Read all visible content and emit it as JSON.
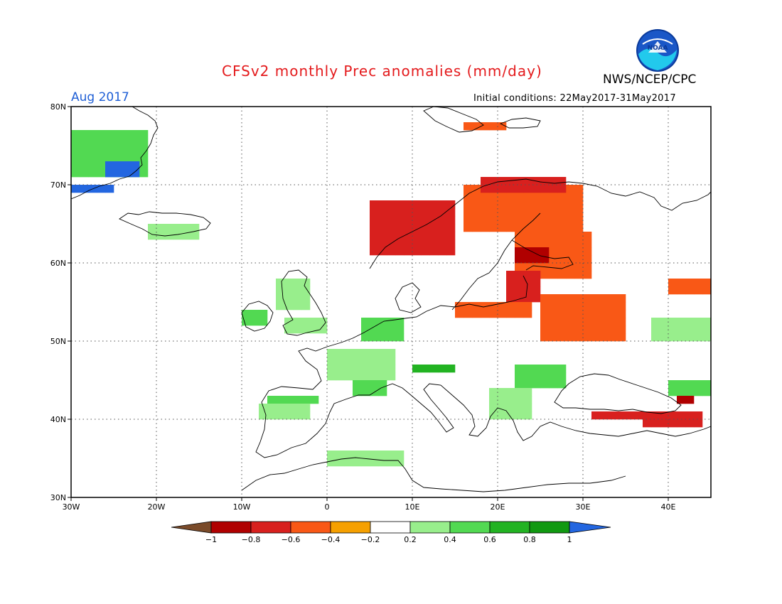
{
  "title": "CFSv2 monthly Prec anomalies (mm/day)",
  "organization": "NWS/NCEP/CPC",
  "logo": {
    "icon": "noaa-logo-icon",
    "text": "NOAA"
  },
  "forecast_month": "Aug 2017",
  "initial_conditions": "Initial conditions: 22May2017-31May2017",
  "map": {
    "lon_range": [
      -30,
      45
    ],
    "lat_range": [
      30,
      80
    ],
    "lat_ticks": [
      {
        "value": 80,
        "label": "80N"
      },
      {
        "value": 70,
        "label": "70N"
      },
      {
        "value": 60,
        "label": "60N"
      },
      {
        "value": 50,
        "label": "50N"
      },
      {
        "value": 40,
        "label": "40N"
      },
      {
        "value": 30,
        "label": "30N"
      }
    ],
    "lon_ticks": [
      {
        "value": -30,
        "label": "30W"
      },
      {
        "value": -20,
        "label": "20W"
      },
      {
        "value": -10,
        "label": "10W"
      },
      {
        "value": 0,
        "label": "0"
      },
      {
        "value": 10,
        "label": "10E"
      },
      {
        "value": 20,
        "label": "20E"
      },
      {
        "value": 30,
        "label": "30E"
      },
      {
        "value": 40,
        "label": "40E"
      }
    ],
    "gridlines": true,
    "cell_size_deg": 1.0,
    "anomaly_regions": [
      {
        "name": "greenland-wet",
        "category": 0.6,
        "lon": [
          -30,
          -21
        ],
        "lat": [
          71,
          77
        ]
      },
      {
        "name": "greenland-very-wet",
        "category": 1.0,
        "lon": [
          -26,
          -22
        ],
        "lat": [
          71,
          73
        ]
      },
      {
        "name": "greenland-coast-blue",
        "category": 1.0,
        "lon": [
          -30,
          -25
        ],
        "lat": [
          69,
          70
        ]
      },
      {
        "name": "iceland-wet",
        "category": 0.4,
        "lon": [
          -21,
          -15
        ],
        "lat": [
          63,
          65
        ]
      },
      {
        "name": "scotland-wet",
        "category": 0.4,
        "lon": [
          -6,
          -2
        ],
        "lat": [
          54,
          58
        ]
      },
      {
        "name": "ireland-wet",
        "category": 0.6,
        "lon": [
          -10,
          -7
        ],
        "lat": [
          52,
          54
        ]
      },
      {
        "name": "wales-wet",
        "category": 0.4,
        "lon": [
          -5,
          0
        ],
        "lat": [
          51,
          53
        ]
      },
      {
        "name": "benelux-wet",
        "category": 0.6,
        "lon": [
          4,
          9
        ],
        "lat": [
          50,
          53
        ]
      },
      {
        "name": "france-wet",
        "category": 0.4,
        "lon": [
          0,
          8
        ],
        "lat": [
          45,
          49
        ]
      },
      {
        "name": "france-south-wet",
        "category": 0.6,
        "lon": [
          3,
          7
        ],
        "lat": [
          43,
          45
        ]
      },
      {
        "name": "iberia-north-wet",
        "category": 0.6,
        "lon": [
          -7,
          -1
        ],
        "lat": [
          42,
          43
        ]
      },
      {
        "name": "iberia-wet",
        "category": 0.4,
        "lon": [
          -8,
          -2
        ],
        "lat": [
          40,
          42
        ]
      },
      {
        "name": "alps-wet",
        "category": 0.8,
        "lon": [
          10,
          15
        ],
        "lat": [
          46,
          47
        ]
      },
      {
        "name": "hungary-romania-wet",
        "category": 0.6,
        "lon": [
          22,
          28
        ],
        "lat": [
          44,
          47
        ]
      },
      {
        "name": "balkans-wet",
        "category": 0.4,
        "lon": [
          19,
          24
        ],
        "lat": [
          40,
          44
        ]
      },
      {
        "name": "northafrica-wet",
        "category": 0.4,
        "lon": [
          0,
          9
        ],
        "lat": [
          34,
          36
        ]
      },
      {
        "name": "russia-wet",
        "category": 0.4,
        "lon": [
          38,
          45
        ],
        "lat": [
          50,
          53
        ]
      },
      {
        "name": "caucasus-wet",
        "category": 0.6,
        "lon": [
          40,
          45
        ],
        "lat": [
          43,
          45
        ]
      },
      {
        "name": "scandinavia-dry",
        "category": -0.4,
        "lon": [
          16,
          30
        ],
        "lat": [
          64,
          70
        ]
      },
      {
        "name": "norway-coast-dry",
        "category": -0.6,
        "lon": [
          5,
          15
        ],
        "lat": [
          61,
          68
        ]
      },
      {
        "name": "lapland-dry",
        "category": -0.6,
        "lon": [
          18,
          28
        ],
        "lat": [
          69,
          71
        ]
      },
      {
        "name": "finland-dry",
        "category": -0.4,
        "lon": [
          22,
          31
        ],
        "lat": [
          58,
          64
        ]
      },
      {
        "name": "finland-south-dry",
        "category": -0.8,
        "lon": [
          22,
          26
        ],
        "lat": [
          60,
          62
        ]
      },
      {
        "name": "baltic-dry",
        "category": -0.6,
        "lon": [
          21,
          25
        ],
        "lat": [
          55,
          59
        ]
      },
      {
        "name": "poland-dry",
        "category": -0.4,
        "lon": [
          15,
          24
        ],
        "lat": [
          53,
          55
        ]
      },
      {
        "name": "belarus-dry",
        "category": -0.4,
        "lon": [
          25,
          35
        ],
        "lat": [
          50,
          56
        ]
      },
      {
        "name": "svalbard-dry",
        "category": -0.4,
        "lon": [
          16,
          21
        ],
        "lat": [
          77,
          78
        ]
      },
      {
        "name": "turkey-north-dry",
        "category": -0.6,
        "lon": [
          31,
          38
        ],
        "lat": [
          40,
          41
        ]
      },
      {
        "name": "turkey-east-dry",
        "category": -0.6,
        "lon": [
          37,
          44
        ],
        "lat": [
          39,
          41
        ]
      },
      {
        "name": "caucasus-dry",
        "category": -0.8,
        "lon": [
          41,
          43
        ],
        "lat": [
          42,
          43
        ]
      },
      {
        "name": "russia-east-dry",
        "category": -0.4,
        "lon": [
          40,
          45
        ],
        "lat": [
          56,
          58
        ]
      }
    ],
    "coastline_color": "#000000"
  },
  "colorbar": {
    "labels": [
      "-1",
      "-0.8",
      "-0.6",
      "-0.4",
      "-0.2",
      "0.2",
      "0.4",
      "0.6",
      "0.8",
      "1"
    ],
    "colors": [
      "#7a4b2a",
      "#b00000",
      "#d8201e",
      "#f95816",
      "#f6a000",
      "#ffffff",
      "#98ee8c",
      "#52d952",
      "#22b322",
      "#119911",
      "#2366e0"
    ]
  }
}
